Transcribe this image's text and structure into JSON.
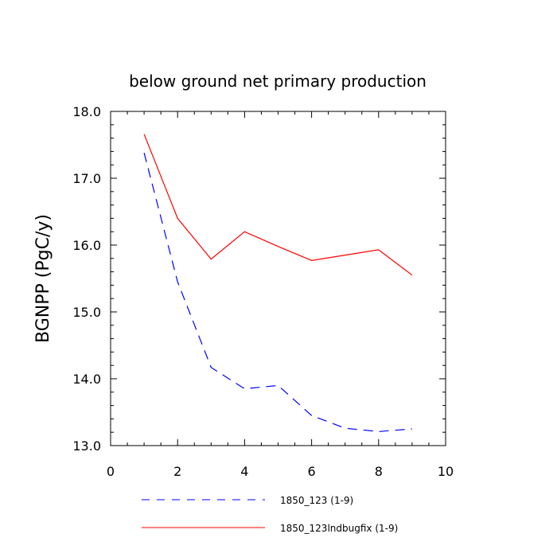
{
  "chart_data": {
    "type": "line",
    "title": "below ground net primary production",
    "xlabel": "",
    "ylabel": "BGNPP  (PgC/y)",
    "xlim": [
      0,
      10
    ],
    "ylim": [
      13.0,
      18.0
    ],
    "xticks": [
      0,
      2,
      4,
      6,
      8,
      10
    ],
    "xtick_labels": [
      "0",
      "2",
      "4",
      "6",
      "8",
      "10"
    ],
    "yticks": [
      13.0,
      14.0,
      15.0,
      16.0,
      17.0,
      18.0
    ],
    "ytick_labels": [
      "13.0",
      "14.0",
      "15.0",
      "16.0",
      "17.0",
      "18.0"
    ],
    "legend_position": "bottom",
    "series": [
      {
        "name": "1850_123 (1-9)",
        "color": "#0000ff",
        "style": "dashed",
        "x": [
          1,
          2,
          3,
          4,
          5,
          6,
          7,
          8,
          9
        ],
        "values": [
          17.38,
          15.45,
          14.17,
          13.85,
          13.9,
          13.45,
          13.26,
          13.21,
          13.25
        ]
      },
      {
        "name": "1850_123lndbugfix (1-9)",
        "color": "#ff0000",
        "style": "solid",
        "x": [
          1,
          2,
          3,
          4,
          5,
          6,
          7,
          8,
          9
        ],
        "values": [
          17.66,
          16.4,
          15.79,
          16.2,
          15.98,
          15.77,
          15.85,
          15.93,
          15.55
        ]
      }
    ]
  }
}
